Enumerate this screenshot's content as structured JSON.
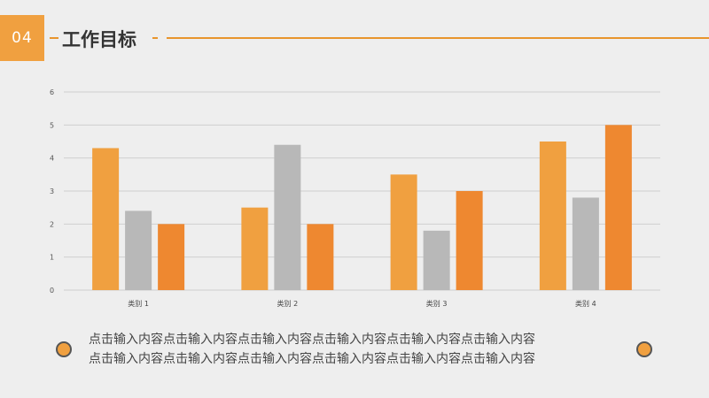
{
  "header": {
    "badge": "04",
    "title": "工作目标"
  },
  "chart_data": {
    "type": "bar",
    "categories": [
      "类别 1",
      "类别 2",
      "类别 3",
      "类别 4"
    ],
    "series": [
      {
        "values": [
          4.3,
          2.5,
          3.5,
          4.5
        ],
        "color": "#f0a040"
      },
      {
        "values": [
          2.4,
          4.4,
          1.8,
          2.8
        ],
        "color": "#b8b8b8"
      },
      {
        "values": [
          2.0,
          2.0,
          3.0,
          5.0
        ],
        "color": "#ee8830"
      }
    ],
    "yticks": [
      "0",
      "1",
      "2",
      "3",
      "4",
      "5",
      "6"
    ],
    "ylim": [
      0,
      6
    ],
    "grid": true
  },
  "body": {
    "line1": "点击输入内容点击输入内容点击输入内容点击输入内容点击输入内容点击输入内容",
    "line2": "点击输入内容点击输入内容点击输入内容点击输入内容点击输入内容点击输入内容"
  }
}
